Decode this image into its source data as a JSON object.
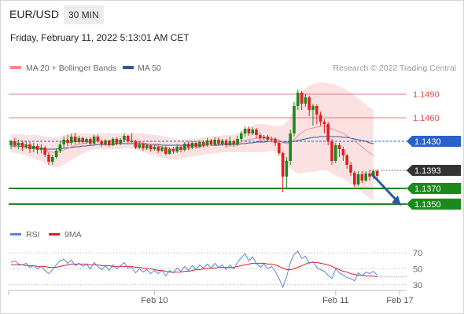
{
  "header": {
    "symbol": "EUR/USD",
    "timeframe": "30 MIN",
    "datetime": "Friday, February 11, 2022 5:13:01 AM CET"
  },
  "legend": {
    "ma20_label": "MA 20 + Bollinger Bands",
    "ma20_color": "#f08a8a",
    "ma50_label": "MA 50",
    "ma50_color": "#2c5a9c",
    "copyright": "Research © 2022 Trading Central"
  },
  "chart_data": {
    "type": "candlestick",
    "y_range": [
      1.1318,
      1.1518
    ],
    "levels": [
      {
        "value": "1.1490",
        "kind": "resistance",
        "color": "#e05050"
      },
      {
        "value": "1.1460",
        "kind": "resistance",
        "color": "#e05050"
      },
      {
        "value": "1.1430",
        "kind": "pivot",
        "color": "#2a62c9"
      },
      {
        "value": "1.1393",
        "kind": "last-price",
        "color": "#333333"
      },
      {
        "value": "1.1370",
        "kind": "support",
        "color": "#1a8a1a"
      },
      {
        "value": "1.1350",
        "kind": "support",
        "color": "#1a8a1a"
      }
    ],
    "bullish_color": "#1a8a1a",
    "bearish_color": "#e02020",
    "candles": [
      [
        1.1425,
        1.143,
        1.142,
        1.1432
      ],
      [
        1.143,
        1.1425,
        1.1422,
        1.1434
      ],
      [
        1.1425,
        1.1428,
        1.142,
        1.1432
      ],
      [
        1.1428,
        1.1423,
        1.1418,
        1.1431
      ],
      [
        1.1423,
        1.1426,
        1.142,
        1.143
      ],
      [
        1.1426,
        1.142,
        1.1415,
        1.1429
      ],
      [
        1.142,
        1.1424,
        1.1416,
        1.1428
      ],
      [
        1.1424,
        1.1419,
        1.1414,
        1.1427
      ],
      [
        1.1419,
        1.1422,
        1.1415,
        1.1426
      ],
      [
        1.1422,
        1.1413,
        1.141,
        1.1424
      ],
      [
        1.1413,
        1.1404,
        1.14,
        1.1416
      ],
      [
        1.1404,
        1.141,
        1.14,
        1.1413
      ],
      [
        1.141,
        1.1418,
        1.1408,
        1.1421
      ],
      [
        1.1418,
        1.1426,
        1.1415,
        1.143
      ],
      [
        1.1426,
        1.1432,
        1.1422,
        1.1436
      ],
      [
        1.1432,
        1.1428,
        1.1424,
        1.1438
      ],
      [
        1.1428,
        1.1436,
        1.1425,
        1.144
      ],
      [
        1.1436,
        1.1429,
        1.1426,
        1.1441
      ],
      [
        1.1429,
        1.1434,
        1.1427,
        1.1437
      ],
      [
        1.1434,
        1.1429,
        1.1427,
        1.1436
      ],
      [
        1.1429,
        1.1433,
        1.1426,
        1.1435
      ],
      [
        1.1433,
        1.1427,
        1.1424,
        1.1435
      ],
      [
        1.1427,
        1.1436,
        1.1425,
        1.1438
      ],
      [
        1.1436,
        1.143,
        1.1428,
        1.1438
      ],
      [
        1.143,
        1.1426,
        1.1423,
        1.1432
      ],
      [
        1.1426,
        1.1431,
        1.1424,
        1.1433
      ],
      [
        1.1431,
        1.1425,
        1.1423,
        1.1432
      ],
      [
        1.1425,
        1.1433,
        1.1424,
        1.1435
      ],
      [
        1.1433,
        1.1427,
        1.1425,
        1.1435
      ],
      [
        1.1427,
        1.1432,
        1.1425,
        1.1434
      ],
      [
        1.1432,
        1.1437,
        1.143,
        1.144
      ],
      [
        1.1437,
        1.143,
        1.1428,
        1.1438
      ],
      [
        1.143,
        1.143,
        1.1428,
        1.144
      ],
      [
        1.143,
        1.1422,
        1.142,
        1.1432
      ],
      [
        1.1422,
        1.1426,
        1.142,
        1.143
      ],
      [
        1.1426,
        1.1421,
        1.1418,
        1.1428
      ],
      [
        1.1421,
        1.1425,
        1.1419,
        1.1427
      ],
      [
        1.1425,
        1.142,
        1.1417,
        1.1427
      ],
      [
        1.142,
        1.1423,
        1.1418,
        1.1425
      ],
      [
        1.1423,
        1.1418,
        1.1415,
        1.1425
      ],
      [
        1.1418,
        1.1422,
        1.1416,
        1.1424
      ],
      [
        1.1422,
        1.1414,
        1.1412,
        1.1424
      ],
      [
        1.1414,
        1.142,
        1.1413,
        1.1422
      ],
      [
        1.142,
        1.1417,
        1.1414,
        1.1423
      ],
      [
        1.1417,
        1.1423,
        1.1415,
        1.1426
      ],
      [
        1.1423,
        1.1419,
        1.1416,
        1.1425
      ],
      [
        1.1419,
        1.1427,
        1.1417,
        1.1429
      ],
      [
        1.1427,
        1.1422,
        1.1419,
        1.143
      ],
      [
        1.1422,
        1.1428,
        1.142,
        1.143
      ],
      [
        1.1428,
        1.1423,
        1.1421,
        1.143
      ],
      [
        1.1423,
        1.1429,
        1.1421,
        1.1431
      ],
      [
        1.1429,
        1.1425,
        1.1422,
        1.1431
      ],
      [
        1.1425,
        1.1431,
        1.1423,
        1.1434
      ],
      [
        1.1431,
        1.1426,
        1.1424,
        1.1433
      ],
      [
        1.1426,
        1.1432,
        1.1424,
        1.1435
      ],
      [
        1.1432,
        1.1427,
        1.1425,
        1.1435
      ],
      [
        1.1427,
        1.1431,
        1.1424,
        1.1433
      ],
      [
        1.1431,
        1.1425,
        1.1422,
        1.1433
      ],
      [
        1.1425,
        1.143,
        1.1423,
        1.1436
      ],
      [
        1.143,
        1.1426,
        1.1423,
        1.1432
      ],
      [
        1.1426,
        1.1433,
        1.1424,
        1.1437
      ],
      [
        1.1433,
        1.144,
        1.143,
        1.1443
      ],
      [
        1.144,
        1.1446,
        1.1436,
        1.1449
      ],
      [
        1.1446,
        1.144,
        1.1437,
        1.1449
      ],
      [
        1.144,
        1.1445,
        1.1438,
        1.1448
      ],
      [
        1.1445,
        1.1438,
        1.1434,
        1.1447
      ],
      [
        1.1438,
        1.1434,
        1.143,
        1.1441
      ],
      [
        1.1434,
        1.1436,
        1.1431,
        1.1438
      ],
      [
        1.1436,
        1.1432,
        1.1429,
        1.1438
      ],
      [
        1.1432,
        1.1433,
        1.1429,
        1.1436
      ],
      [
        1.1433,
        1.1428,
        1.1424,
        1.1435
      ],
      [
        1.1428,
        1.1415,
        1.1412,
        1.143
      ],
      [
        1.1415,
        1.1385,
        1.1365,
        1.1417
      ],
      [
        1.1385,
        1.1405,
        1.137,
        1.141
      ],
      [
        1.1405,
        1.144,
        1.14,
        1.1445
      ],
      [
        1.144,
        1.1475,
        1.1436,
        1.148
      ],
      [
        1.1475,
        1.1492,
        1.147,
        1.1496
      ],
      [
        1.1492,
        1.1478,
        1.147,
        1.1494
      ],
      [
        1.1478,
        1.1486,
        1.1474,
        1.149
      ],
      [
        1.1486,
        1.147,
        1.1462,
        1.1488
      ],
      [
        1.147,
        1.1475,
        1.145,
        1.1478
      ],
      [
        1.1475,
        1.1464,
        1.1452,
        1.1477
      ],
      [
        1.1464,
        1.1455,
        1.145,
        1.1468
      ],
      [
        1.1455,
        1.1452,
        1.144,
        1.1458
      ],
      [
        1.1452,
        1.143,
        1.1425,
        1.1455
      ],
      [
        1.143,
        1.1405,
        1.14,
        1.1433
      ],
      [
        1.1405,
        1.1425,
        1.1402,
        1.1428
      ],
      [
        1.1425,
        1.142,
        1.141,
        1.1428
      ],
      [
        1.142,
        1.1412,
        1.1405,
        1.1423
      ],
      [
        1.1412,
        1.14,
        1.1395,
        1.1414
      ],
      [
        1.14,
        1.139,
        1.1386,
        1.1404
      ],
      [
        1.139,
        1.1375,
        1.1372,
        1.1392
      ],
      [
        1.1375,
        1.1388,
        1.1373,
        1.1392
      ],
      [
        1.1388,
        1.138,
        1.1377,
        1.1392
      ],
      [
        1.138,
        1.1389,
        1.1378,
        1.1392
      ],
      [
        1.1389,
        1.1385,
        1.138,
        1.1393
      ],
      [
        1.1385,
        1.1392,
        1.1382,
        1.1394
      ],
      [
        1.1392,
        1.1386,
        1.1383,
        1.1394
      ]
    ],
    "ma20": [
      1.1428,
      1.1427,
      1.1427,
      1.1426,
      1.1425,
      1.1424,
      1.1423,
      1.1422,
      1.1421,
      1.1419,
      1.1417,
      1.1416,
      1.1416,
      1.1417,
      1.1419,
      1.1421,
      1.1423,
      1.1425,
      1.1426,
      1.1427,
      1.1428,
      1.1429,
      1.143,
      1.143,
      1.143,
      1.143,
      1.143,
      1.143,
      1.143,
      1.143,
      1.1431,
      1.1431,
      1.1431,
      1.143,
      1.1429,
      1.1428,
      1.1427,
      1.1426,
      1.1425,
      1.1424,
      1.1423,
      1.1422,
      1.1421,
      1.142,
      1.142,
      1.142,
      1.1421,
      1.1421,
      1.1422,
      1.1422,
      1.1423,
      1.1424,
      1.1425,
      1.1425,
      1.1426,
      1.1426,
      1.1427,
      1.1427,
      1.1427,
      1.1427,
      1.1428,
      1.1429,
      1.1431,
      1.1432,
      1.1433,
      1.1434,
      1.1434,
      1.1434,
      1.1434,
      1.1434,
      1.1433,
      1.1432,
      1.1428,
      1.1427,
      1.1428,
      1.1432,
      1.1437,
      1.1441,
      1.1444,
      1.1446,
      1.1447,
      1.1448,
      1.1449,
      1.1449,
      1.1448,
      1.1446,
      1.1444,
      1.1442,
      1.144,
      1.1437,
      1.1434,
      1.143,
      1.1427,
      1.1423,
      1.1419,
      1.1415,
      1.1412
    ],
    "bb_width": [
      0.0012,
      0.0012,
      0.0012,
      0.0013,
      0.0013,
      0.0014,
      0.0015,
      0.0016,
      0.0016,
      0.0017,
      0.0018,
      0.0019,
      0.0019,
      0.0019,
      0.0019,
      0.0018,
      0.0017,
      0.0016,
      0.0014,
      0.0013,
      0.0012,
      0.0011,
      0.001,
      0.001,
      0.001,
      0.001,
      0.001,
      0.001,
      0.001,
      0.001,
      0.001,
      0.001,
      0.001,
      0.001,
      0.0011,
      0.0012,
      0.0012,
      0.0013,
      0.0013,
      0.0014,
      0.0014,
      0.0014,
      0.0014,
      0.0013,
      0.0013,
      0.0012,
      0.0012,
      0.0011,
      0.0011,
      0.0011,
      0.0011,
      0.0011,
      0.0011,
      0.0011,
      0.0011,
      0.0011,
      0.0011,
      0.0011,
      0.0011,
      0.0011,
      0.0012,
      0.0013,
      0.0015,
      0.0016,
      0.0017,
      0.0018,
      0.0018,
      0.0018,
      0.0017,
      0.0016,
      0.0016,
      0.0017,
      0.0022,
      0.0028,
      0.0033,
      0.004,
      0.0048,
      0.0052,
      0.0054,
      0.0055,
      0.0056,
      0.0056,
      0.0056,
      0.0056,
      0.0056,
      0.0057,
      0.0058,
      0.0058,
      0.0058,
      0.0058,
      0.0058,
      0.0058,
      0.0058,
      0.0058,
      0.0058,
      0.0058,
      0.0058
    ],
    "ma50": [
      1.1424,
      1.1424,
      1.1424,
      1.1423,
      1.1423,
      1.1422,
      1.1422,
      1.1421,
      1.1421,
      1.142,
      1.142,
      1.142,
      1.142,
      1.1421,
      1.1421,
      1.1422,
      1.1422,
      1.1423,
      1.1423,
      1.1424,
      1.1424,
      1.1425,
      1.1425,
      1.1426,
      1.1426,
      1.1426,
      1.1426,
      1.1426,
      1.1427,
      1.1427,
      1.1427,
      1.1427,
      1.1427,
      1.1427,
      1.1427,
      1.1427,
      1.1426,
      1.1426,
      1.1426,
      1.1426,
      1.1425,
      1.1425,
      1.1425,
      1.1425,
      1.1425,
      1.1425,
      1.1425,
      1.1425,
      1.1425,
      1.1425,
      1.1425,
      1.1425,
      1.1425,
      1.1425,
      1.1425,
      1.1425,
      1.1426,
      1.1426,
      1.1426,
      1.1426,
      1.1426,
      1.1427,
      1.1427,
      1.1428,
      1.1428,
      1.1429,
      1.1429,
      1.1429,
      1.143,
      1.143,
      1.143,
      1.143,
      1.1429,
      1.1429,
      1.1429,
      1.143,
      1.1431,
      1.1432,
      1.1433,
      1.1434,
      1.1435,
      1.1435,
      1.1436,
      1.1436,
      1.1436,
      1.1436,
      1.1436,
      1.1436,
      1.1435,
      1.1435,
      1.1434,
      1.1433,
      1.1432,
      1.1431,
      1.143,
      1.1428,
      1.1427
    ],
    "forecast": {
      "from": 1.1392,
      "to": 1.135
    },
    "rsi": {
      "legend": [
        {
          "name": "RSI",
          "color": "#5b84d9"
        },
        {
          "name": "9MA",
          "color": "#e02020"
        }
      ],
      "y_range": [
        20,
        80
      ],
      "ticks": [
        "70",
        "50",
        "30"
      ],
      "rsi": [
        58,
        60,
        56,
        55,
        57,
        52,
        54,
        50,
        53,
        48,
        44,
        49,
        55,
        60,
        62,
        57,
        61,
        54,
        57,
        53,
        56,
        50,
        58,
        53,
        49,
        54,
        48,
        55,
        50,
        54,
        58,
        51,
        52,
        45,
        50,
        46,
        49,
        44,
        48,
        44,
        48,
        41,
        48,
        45,
        51,
        47,
        53,
        48,
        54,
        49,
        55,
        51,
        56,
        51,
        57,
        52,
        55,
        49,
        55,
        50,
        58,
        64,
        69,
        60,
        65,
        57,
        52,
        56,
        50,
        53,
        47,
        38,
        27,
        40,
        58,
        68,
        72,
        63,
        66,
        57,
        59,
        52,
        49,
        47,
        42,
        38,
        50,
        45,
        42,
        39,
        38,
        35,
        45,
        41,
        46,
        44,
        47,
        42
      ],
      "ma9": [
        55,
        55,
        55,
        55,
        54,
        54,
        54,
        53,
        53,
        53,
        52,
        52,
        52,
        53,
        54,
        55,
        56,
        56,
        56,
        56,
        56,
        55,
        55,
        55,
        54,
        54,
        54,
        53,
        53,
        53,
        53,
        53,
        53,
        52,
        52,
        51,
        50,
        50,
        49,
        48,
        48,
        47,
        46,
        46,
        46,
        46,
        47,
        47,
        48,
        49,
        49,
        50,
        50,
        51,
        51,
        52,
        52,
        52,
        52,
        52,
        53,
        54,
        55,
        56,
        57,
        57,
        57,
        57,
        56,
        56,
        55,
        53,
        51,
        49,
        49,
        50,
        52,
        54,
        56,
        58,
        58,
        58,
        57,
        56,
        55,
        53,
        51,
        49,
        47,
        46,
        44,
        43,
        42,
        42,
        41,
        41,
        41,
        40
      ],
      "dotted_tail_value": 40
    },
    "x_axis": {
      "labels": [
        {
          "label": "Feb 10",
          "index": 38
        },
        {
          "label": "Feb 11",
          "index": 86
        },
        {
          "label": "Feb 17",
          "index": 103
        }
      ]
    }
  }
}
